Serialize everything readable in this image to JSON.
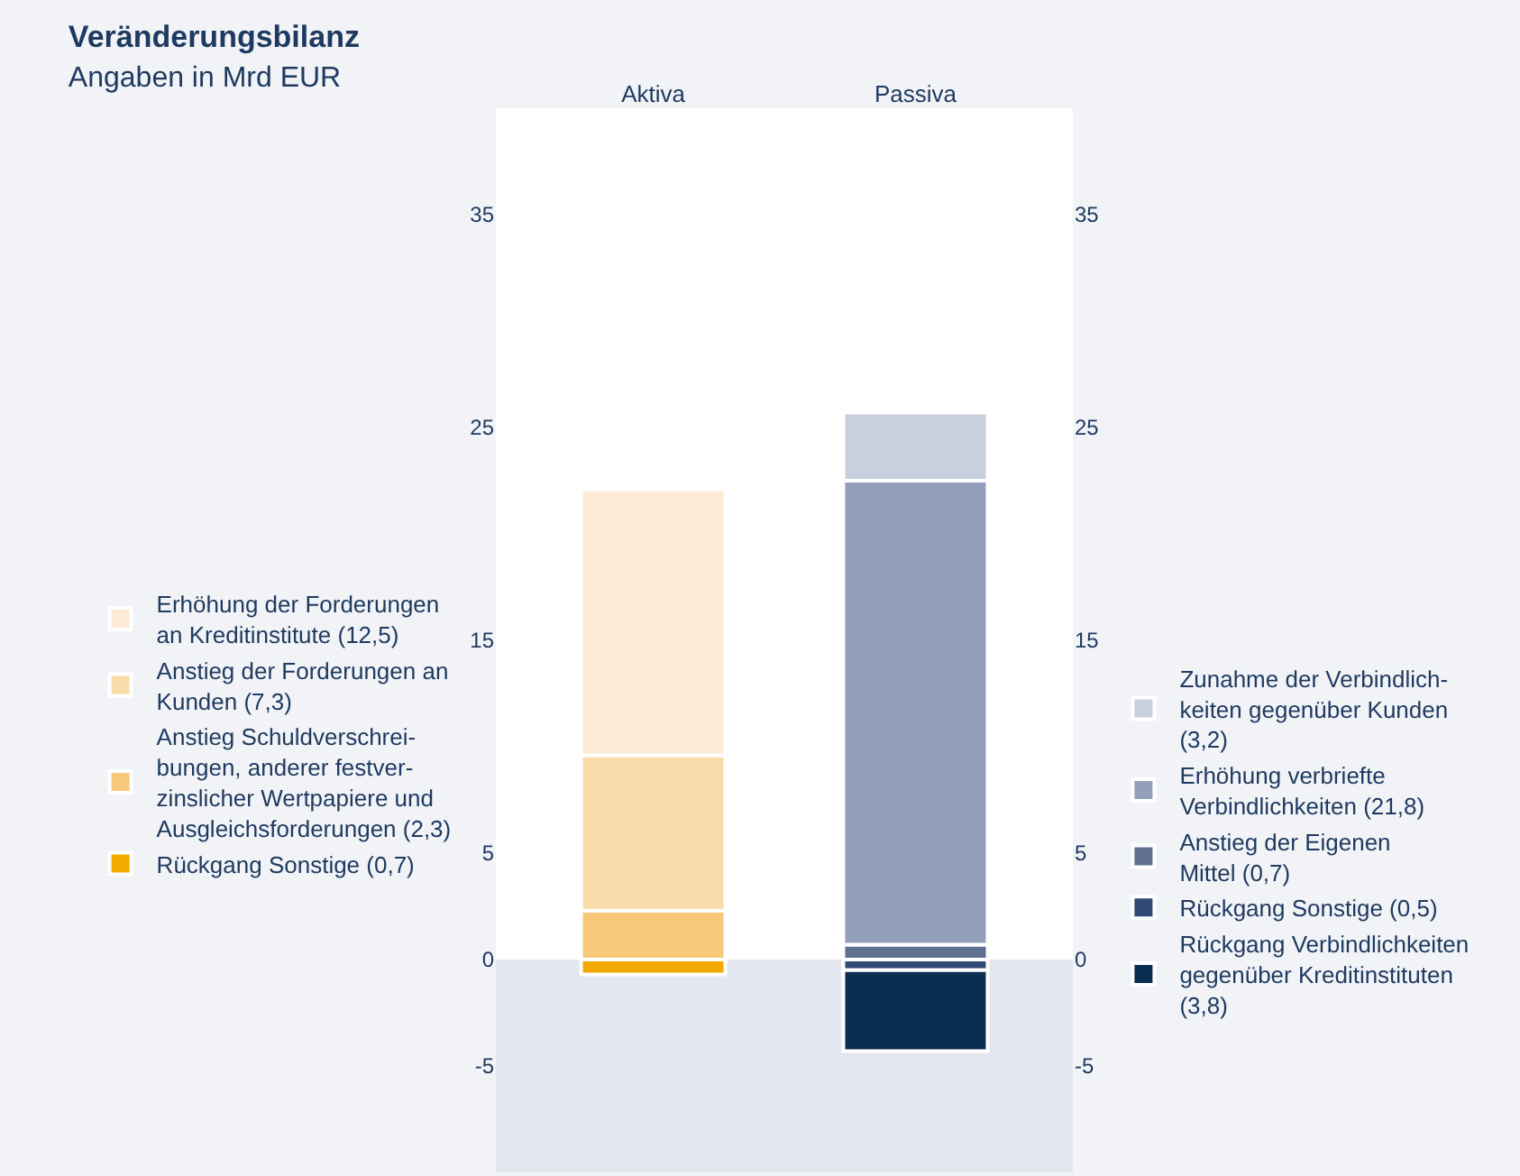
{
  "chart_data": {
    "type": "bar",
    "title": "Veränderungsbilanz",
    "subtitle": "Angaben in Mrd EUR",
    "categories": [
      "Aktiva",
      "Passiva"
    ],
    "stacked": true,
    "series": [
      {
        "name": "Anstieg Schuldverschrei-\nbungen, anderer festver-\nzinslicher Wertpapiere und\nAusgleichsforderungen (2,3)",
        "color": "#f7c87a",
        "values": [
          2.3,
          null
        ]
      },
      {
        "name": "Anstieg der Forderungen an\nKunden (7,3)",
        "color": "#fadcaa",
        "values": [
          7.3,
          null
        ]
      },
      {
        "name": "Erhöhung der Forderungen\nan Kreditinstitute (12,5)",
        "color": "#fdebd6",
        "values": [
          12.5,
          null
        ]
      },
      {
        "name": "Rückgang Sonstige (0,7)",
        "color": "#f2a900",
        "values": [
          -0.7,
          null
        ]
      },
      {
        "name": "Anstieg der Eigenen\nMittel (0,7)",
        "color": "#60718f",
        "values": [
          null,
          0.7
        ]
      },
      {
        "name": "Erhöhung verbriefte\nVerbindlichkeiten (21,8)",
        "color": "#94a0bb",
        "values": [
          null,
          21.8
        ]
      },
      {
        "name": "Zunahme der Verbindlich-\nkeiten gegenüber Kunden\n(3,2)",
        "color": "#c8cfdd",
        "values": [
          null,
          3.2
        ]
      },
      {
        "name": "Rückgang Sonstige (0,5)",
        "color": "#2f4a74",
        "values": [
          null,
          -0.5
        ]
      },
      {
        "name": "Rückgang Verbindlichkeiten\ngegenüber Kreditinstituten\n(3,8)",
        "color": "#0c2d52",
        "values": [
          null,
          -3.8
        ]
      }
    ],
    "ylim": [
      -10,
      40
    ],
    "yticks": [
      -5,
      0,
      5,
      15,
      25,
      35
    ],
    "y2lim": [
      -10,
      40
    ],
    "y2ticks": [
      -5,
      0,
      5,
      15,
      25,
      35
    ],
    "bands": [
      {
        "axis": "y",
        "from": -10,
        "to": 0,
        "color": "#e4e7ef"
      }
    ],
    "grid": false,
    "legend": "left"
  }
}
